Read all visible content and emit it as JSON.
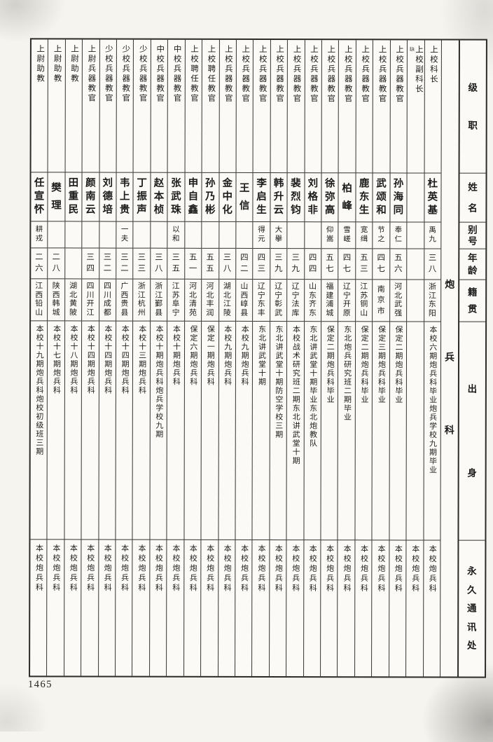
{
  "page_number": "1465",
  "section": {
    "title": "炮兵科"
  },
  "headers": {
    "rank": "级职",
    "name": "姓名",
    "alias": "别号",
    "age": "年龄",
    "native_place": "籍贯",
    "background": "出身",
    "address": "永久通讯处"
  },
  "people": [
    {
      "rank": "上校科长",
      "name": "杜英基",
      "alias": "禹九",
      "age": "三八",
      "native_place": "浙江东阳",
      "background": "本校六期炮兵科毕业炮兵学校九期毕业",
      "address": "本校炮兵科"
    },
    {
      "rank": "上校副科长",
      "rank_note": "缺",
      "name": "",
      "alias": "",
      "age": "",
      "native_place": "",
      "background": "",
      "address": "本校炮兵科"
    },
    {
      "rank": "上校兵器教官",
      "name": "孙海同",
      "alias": "奉仁",
      "age": "五六",
      "native_place": "河北武强",
      "background": "保定二期炮兵科毕业",
      "address": "本校炮兵科"
    },
    {
      "rank": "上校兵器教官",
      "name": "武颂和",
      "alias": "节之",
      "age": "四七",
      "native_place": "南京市",
      "background": "保定三期炮兵科毕业",
      "address": "本校炮兵科"
    },
    {
      "rank": "上校兵器教官",
      "name": "鹿东生",
      "alias": "宽缉",
      "age": "五三",
      "native_place": "江苏铜山",
      "background": "保定二期炮兵科毕业",
      "address": "本校炮兵科"
    },
    {
      "rank": "上校兵器教官",
      "name": "柏峰",
      "alias": "雪嵯",
      "age": "四七",
      "native_place": "辽宁开原",
      "background": "东北炮兵研究班二期毕业",
      "address": "本校炮兵科"
    },
    {
      "rank": "上校兵器教官",
      "name": "徐弥高",
      "alias": "仰嵩",
      "age": "五七",
      "native_place": "福建浦城",
      "background": "保定二期炮兵科毕业",
      "address": "本校炮兵科"
    },
    {
      "rank": "上校兵器教官",
      "name": "刘格非",
      "alias": "",
      "age": "四四",
      "native_place": "山东齐东",
      "background": "东北讲武堂十期毕业东北炮教队",
      "address": "本校炮兵科"
    },
    {
      "rank": "上校兵器教官",
      "name": "裴烈钧",
      "alias": "",
      "age": "三九",
      "native_place": "辽宁法库",
      "background": "本校战术研究班二期东北讲武堂十期",
      "address": "本校炮兵科"
    },
    {
      "rank": "上校兵器教官",
      "name": "韩升云",
      "alias": "大擧",
      "age": "三九",
      "native_place": "辽宁彰武",
      "background": "东北讲武堂十期防空学校三期",
      "address": "本校炮兵科"
    },
    {
      "rank": "上校兵器教官",
      "name": "李启生",
      "alias": "得元",
      "age": "四三",
      "native_place": "辽宁东丰",
      "background": "东北讲武堂十期",
      "address": "本校炮兵科"
    },
    {
      "rank": "上校兵器教官",
      "name": "王信",
      "alias": "",
      "age": "四二",
      "native_place": "山西崞县",
      "background": "本校九期炮兵科",
      "address": "本校炮兵科"
    },
    {
      "rank": "上校兵器教官",
      "name": "金中化",
      "alias": "",
      "age": "三八",
      "native_place": "湖北江陵",
      "background": "本校九期炮兵科",
      "address": "本校炮兵科"
    },
    {
      "rank": "上校聘任教官",
      "name": "孙乃彬",
      "alias": "",
      "age": "五五",
      "native_place": "河北丰润",
      "background": "保定一期炮兵科",
      "address": "本校炮兵科"
    },
    {
      "rank": "上校聘任教官",
      "name": "申自鑫",
      "alias": "",
      "age": "五一",
      "native_place": "河北清苑",
      "background": "保定六期炮兵科",
      "address": "本校炮兵科"
    },
    {
      "rank": "中校兵器教官",
      "name": "张武珠",
      "alias": "以和",
      "age": "三五",
      "native_place": "江苏阜宁",
      "background": "本校十期炮兵科",
      "address": "本校炮兵科"
    },
    {
      "rank": "中校兵器教官",
      "name": "赵本桢",
      "alias": "",
      "age": "三八",
      "native_place": "浙江鄞县",
      "background": "本校十期炮兵科炮兵学校九期",
      "address": "本校炮兵科"
    },
    {
      "rank": "少校兵器教官",
      "name": "丁振声",
      "alias": "",
      "age": "三三",
      "native_place": "浙江杭州",
      "background": "本校十三期炮兵科",
      "address": "本校炮兵科"
    },
    {
      "rank": "少校兵器教官",
      "name": "韦上贵",
      "alias": "一夫",
      "age": "三二",
      "native_place": "广西贵县",
      "background": "本校十四期炮兵科",
      "address": "本校炮兵科"
    },
    {
      "rank": "少校兵器教官",
      "name": "刘德培",
      "alias": "",
      "age": "三二",
      "native_place": "四川成都",
      "background": "本校十四期炮兵科",
      "address": "本校炮兵科"
    },
    {
      "rank": "上尉兵器教官",
      "name": "颜南云",
      "alias": "",
      "age": "三四",
      "native_place": "四川开江",
      "background": "本校十四期炮兵科",
      "address": "本校炮兵科"
    },
    {
      "rank": "上尉助教",
      "name": "田重民",
      "alias": "",
      "age": "",
      "native_place": "湖北黄陂",
      "background": "本校十八期炮兵科",
      "address": "本校炮兵科"
    },
    {
      "rank": "上尉助教",
      "name": "樊理",
      "alias": "",
      "age": "二八",
      "native_place": "陕西韩城",
      "background": "本校十七期炮兵科",
      "address": "本校炮兵科"
    },
    {
      "rank": "上尉助教",
      "name": "任宣怀",
      "alias": "耕戎",
      "age": "二六",
      "native_place": "江西铅山",
      "background": "本校十九期炮兵科炮校初级班三期",
      "address": "本校炮兵科"
    }
  ]
}
